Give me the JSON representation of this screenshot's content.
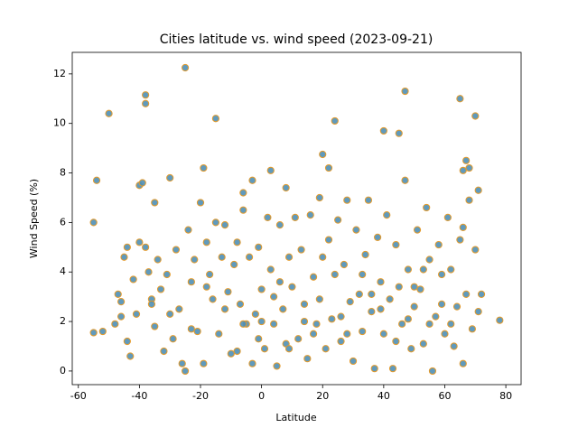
{
  "chart_data": {
    "type": "scatter",
    "title": "Cities latitude vs. wind speed (2023-09-21)",
    "x_label": "Latitude",
    "y_label": "Wind Speed (%)",
    "color": "#4f8fb5",
    "edgecolor": "#e49a2a",
    "xlim": [
      -62,
      85
    ],
    "ylim": [
      -0.55,
      12.87
    ],
    "xticks": [
      -60,
      -40,
      -20,
      0,
      20,
      40,
      60,
      80
    ],
    "yticks": [
      0,
      2,
      4,
      6,
      8,
      10,
      12
    ],
    "x": [
      -55,
      -54,
      -50,
      -55,
      -52,
      -38,
      -38,
      -25,
      -15,
      -19,
      -30,
      -40,
      -39,
      -35,
      24,
      20,
      22,
      45,
      47,
      65,
      70,
      40,
      67,
      66,
      68,
      71,
      78,
      3,
      8,
      -6,
      -3,
      -45,
      -44,
      -42,
      -41,
      -46,
      -46,
      -44,
      -43,
      -40,
      -38,
      -37,
      -36,
      -35,
      -34,
      -33,
      -32,
      -30,
      -29,
      -28,
      -27,
      -26,
      -25,
      -24,
      -23,
      -22,
      -21,
      -20,
      -19,
      -18,
      -17,
      -16,
      -15,
      -14,
      -13,
      -12,
      -11,
      -10,
      -9,
      -8,
      -7,
      -6,
      -5,
      -4,
      -3,
      -2,
      -1,
      0,
      1,
      2,
      3,
      4,
      5,
      6,
      7,
      8,
      9,
      10,
      11,
      12,
      13,
      14,
      15,
      16,
      17,
      18,
      19,
      20,
      21,
      22,
      23,
      24,
      25,
      26,
      27,
      28,
      29,
      30,
      31,
      32,
      33,
      34,
      35,
      36,
      37,
      38,
      39,
      40,
      41,
      42,
      43,
      44,
      45,
      46,
      47,
      48,
      49,
      50,
      51,
      52,
      53,
      54,
      55,
      56,
      57,
      58,
      59,
      60,
      61,
      62,
      63,
      64,
      65,
      66,
      67,
      68,
      69,
      70,
      71,
      72,
      -48,
      -47,
      -36,
      -31,
      -23,
      -18,
      -12,
      -6,
      -1,
      4,
      9,
      14,
      19,
      26,
      33,
      39,
      44,
      50,
      55,
      59,
      -8,
      0,
      6,
      17,
      28,
      36,
      48,
      53,
      62,
      66
    ],
    "y": [
      6,
      7.7,
      10.4,
      1.55,
      1.6,
      11.15,
      10.8,
      12.25,
      10.2,
      8.2,
      7.8,
      7.5,
      7.6,
      6.8,
      10.1,
      8.75,
      8.2,
      9.6,
      11.3,
      11,
      10.3,
      9.7,
      8.5,
      8.1,
      8.2,
      7.3,
      2.05,
      8.1,
      7.4,
      7.2,
      7.7,
      4.6,
      5,
      3.7,
      2.3,
      2.8,
      2.2,
      1.2,
      0.6,
      5.2,
      5,
      4,
      2.9,
      1.8,
      4.5,
      3.3,
      0.8,
      2.3,
      1.3,
      4.9,
      2.5,
      0.3,
      0,
      5.7,
      3.6,
      4.5,
      1.6,
      6.8,
      0.3,
      5.2,
      3.9,
      2.9,
      6,
      1.5,
      4.6,
      5.9,
      3.2,
      0.7,
      4.3,
      5.2,
      2.7,
      6.5,
      1.9,
      4.6,
      0.3,
      2.3,
      5,
      3.3,
      0.9,
      6.2,
      4.1,
      1.9,
      0.2,
      5.9,
      2.5,
      1.1,
      4.6,
      3.4,
      6.2,
      1.3,
      4.9,
      2.7,
      0.5,
      6.3,
      3.8,
      1.9,
      7,
      4.6,
      0.9,
      5.3,
      2.1,
      3.9,
      6.1,
      1.2,
      4.3,
      6.9,
      2.8,
      0.4,
      5.7,
      3.1,
      1.6,
      4.7,
      6.9,
      2.4,
      0.1,
      5.4,
      3.6,
      1.5,
      6.3,
      2.9,
      0.1,
      5.1,
      3.4,
      1.9,
      7.7,
      4.1,
      0.9,
      2.6,
      5.7,
      3.3,
      1.1,
      6.6,
      4.5,
      0,
      2.2,
      5.1,
      3.9,
      1.5,
      6.2,
      4.1,
      1,
      2.6,
      5.3,
      0.3,
      3.1,
      6.9,
      1.7,
      4.9,
      2.4,
      3.1,
      1.9,
      3.1,
      2.7,
      3.9,
      1.7,
      3.4,
      2.5,
      1.9,
      1.3,
      3,
      0.9,
      2,
      2.9,
      2.2,
      3.9,
      2.5,
      1.2,
      3.4,
      1.9,
      2.7,
      0.8,
      2,
      3.6,
      1.5,
      1.5,
      3.1,
      2.1,
      4.1,
      1.9,
      5.8
    ]
  }
}
